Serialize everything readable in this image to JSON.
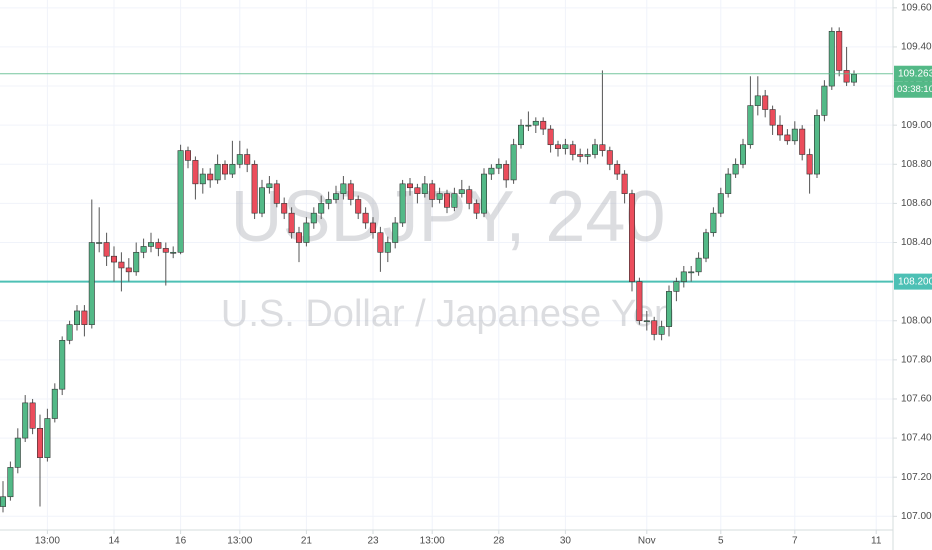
{
  "chart_data": {
    "type": "candlestick",
    "watermark_symbol": "USDJPY, 240",
    "watermark_description": "U.S. Dollar / Japanese Yen",
    "categories": [
      null,
      null,
      null,
      null,
      null,
      null,
      "13:00",
      null,
      null,
      null,
      null,
      null,
      null,
      null,
      null,
      "14",
      null,
      null,
      null,
      null,
      null,
      null,
      null,
      null,
      "16",
      null,
      null,
      null,
      null,
      null,
      null,
      null,
      "13:00",
      null,
      null,
      null,
      null,
      null,
      null,
      null,
      null,
      "21",
      null,
      null,
      null,
      null,
      null,
      null,
      null,
      null,
      "23",
      null,
      null,
      null,
      null,
      null,
      null,
      null,
      "13:00",
      null,
      null,
      null,
      null,
      null,
      null,
      null,
      null,
      "28",
      null,
      null,
      null,
      null,
      null,
      null,
      null,
      null,
      "30",
      null,
      null,
      null,
      null,
      null,
      null,
      null,
      null,
      null,
      null,
      "Nov",
      null,
      null,
      null,
      null,
      null,
      null,
      null,
      null,
      null,
      "5",
      null,
      null,
      null,
      null,
      null,
      null,
      null,
      null,
      null,
      "7",
      null,
      null,
      null,
      null,
      null,
      null,
      null,
      null,
      null,
      null,
      "11"
    ],
    "open": [
      107.05,
      107.1,
      107.25,
      107.4,
      107.58,
      107.45,
      107.3,
      107.5,
      107.65,
      107.9,
      107.98,
      108.05,
      107.98,
      108.4,
      108.4,
      108.33,
      108.3,
      108.27,
      108.25,
      108.35,
      108.38,
      108.4,
      108.37,
      108.35,
      108.35,
      108.87,
      108.82,
      108.7,
      108.75,
      108.72,
      108.8,
      108.75,
      108.8,
      108.85,
      108.8,
      108.55,
      108.68,
      108.7,
      108.6,
      108.55,
      108.45,
      108.4,
      108.5,
      108.55,
      108.6,
      108.62,
      108.65,
      108.7,
      108.62,
      108.55,
      108.5,
      108.45,
      108.35,
      108.4,
      108.5,
      108.7,
      108.68,
      108.65,
      108.7,
      108.62,
      108.65,
      108.58,
      108.65,
      108.67,
      108.6,
      108.55,
      108.75,
      108.78,
      108.8,
      108.72,
      108.9,
      109.0,
      109.0,
      109.02,
      108.98,
      108.9,
      108.88,
      108.9,
      108.85,
      108.84,
      108.85,
      108.9,
      108.87,
      108.8,
      108.75,
      108.65,
      108.2,
      108.0,
      108.0,
      107.93,
      107.97,
      108.15,
      108.2,
      108.25,
      108.25,
      108.32,
      108.45,
      108.55,
      108.65,
      108.75,
      108.8,
      108.9,
      109.1,
      109.15,
      109.08,
      109.0,
      108.95,
      108.92,
      108.98,
      108.85,
      108.75,
      109.05,
      109.2,
      109.48,
      109.28,
      109.22,
      null,
      null,
      null
    ],
    "high": [
      107.18,
      107.28,
      107.45,
      107.62,
      107.6,
      107.52,
      107.55,
      107.68,
      107.92,
      108.0,
      108.08,
      108.08,
      108.62,
      108.58,
      108.45,
      108.38,
      108.35,
      108.32,
      108.4,
      108.42,
      108.45,
      108.42,
      108.4,
      108.38,
      108.9,
      108.89,
      108.84,
      108.78,
      108.78,
      108.85,
      108.82,
      108.92,
      108.92,
      108.88,
      108.82,
      108.72,
      108.74,
      108.72,
      108.63,
      108.58,
      108.48,
      108.53,
      108.58,
      108.64,
      108.66,
      108.69,
      108.74,
      108.72,
      108.64,
      108.58,
      108.53,
      108.48,
      108.43,
      108.53,
      108.72,
      108.73,
      108.7,
      108.74,
      108.72,
      108.68,
      108.67,
      108.68,
      108.72,
      108.69,
      108.62,
      108.78,
      108.8,
      108.83,
      108.82,
      108.93,
      109.03,
      109.07,
      109.04,
      109.04,
      109.0,
      108.92,
      108.93,
      108.92,
      108.88,
      108.88,
      108.93,
      109.28,
      108.89,
      108.82,
      108.77,
      108.67,
      108.22,
      108.05,
      108.02,
      108.0,
      108.18,
      108.22,
      108.28,
      108.28,
      108.35,
      108.47,
      108.58,
      108.68,
      108.78,
      108.83,
      108.93,
      109.25,
      109.25,
      109.18,
      109.1,
      109.05,
      108.98,
      109.02,
      109.0,
      108.88,
      109.08,
      109.23,
      109.5,
      109.5,
      109.4,
      109.28,
      null,
      null,
      null
    ],
    "low": [
      107.02,
      107.08,
      107.22,
      107.38,
      107.42,
      107.05,
      107.28,
      107.48,
      107.62,
      107.88,
      107.95,
      107.92,
      107.96,
      108.35,
      108.28,
      108.2,
      108.15,
      108.2,
      108.23,
      108.32,
      108.35,
      108.33,
      108.18,
      108.32,
      108.34,
      108.78,
      108.62,
      108.65,
      108.68,
      108.7,
      108.72,
      108.73,
      108.78,
      108.76,
      108.52,
      108.53,
      108.65,
      108.58,
      108.52,
      108.42,
      108.3,
      108.38,
      108.47,
      108.52,
      108.57,
      108.6,
      108.62,
      108.59,
      108.52,
      108.47,
      108.42,
      108.25,
      108.3,
      108.37,
      108.48,
      108.64,
      108.6,
      108.63,
      108.58,
      108.6,
      108.55,
      108.56,
      108.63,
      108.57,
      108.52,
      108.53,
      108.72,
      108.75,
      108.68,
      108.7,
      108.88,
      108.97,
      108.96,
      108.95,
      108.86,
      108.84,
      108.85,
      108.82,
      108.81,
      108.8,
      108.83,
      108.84,
      108.77,
      108.72,
      108.6,
      108.15,
      107.98,
      107.95,
      107.9,
      107.9,
      107.92,
      108.1,
      108.17,
      108.2,
      108.23,
      108.3,
      108.43,
      108.53,
      108.63,
      108.73,
      108.78,
      108.88,
      109.05,
      109.04,
      108.95,
      108.92,
      108.9,
      108.9,
      108.82,
      108.65,
      108.73,
      109.02,
      109.18,
      109.25,
      109.2,
      109.2,
      null,
      null,
      null
    ],
    "close": [
      107.1,
      107.25,
      107.4,
      107.58,
      107.45,
      107.3,
      107.5,
      107.65,
      107.9,
      107.98,
      108.05,
      107.98,
      108.4,
      108.4,
      108.33,
      108.3,
      108.27,
      108.25,
      108.35,
      108.38,
      108.4,
      108.37,
      108.35,
      108.35,
      108.87,
      108.82,
      108.7,
      108.75,
      108.72,
      108.8,
      108.75,
      108.8,
      108.85,
      108.8,
      108.55,
      108.68,
      108.7,
      108.6,
      108.55,
      108.45,
      108.4,
      108.5,
      108.55,
      108.6,
      108.62,
      108.65,
      108.7,
      108.62,
      108.55,
      108.5,
      108.45,
      108.35,
      108.4,
      108.5,
      108.7,
      108.68,
      108.65,
      108.7,
      108.62,
      108.65,
      108.58,
      108.65,
      108.67,
      108.6,
      108.55,
      108.75,
      108.78,
      108.8,
      108.72,
      108.9,
      109.0,
      109.0,
      109.02,
      108.98,
      108.9,
      108.88,
      108.9,
      108.85,
      108.84,
      108.85,
      108.9,
      108.87,
      108.8,
      108.75,
      108.65,
      108.2,
      108.0,
      108.0,
      107.93,
      107.97,
      108.15,
      108.2,
      108.25,
      108.25,
      108.32,
      108.45,
      108.55,
      108.65,
      108.75,
      108.8,
      108.9,
      109.1,
      109.15,
      109.08,
      109.0,
      108.95,
      108.92,
      108.98,
      108.85,
      108.75,
      109.05,
      109.2,
      109.48,
      109.28,
      109.22,
      109.26,
      null,
      null,
      null
    ],
    "up_color": "#53b987",
    "down_color": "#eb4d5c",
    "ylim": [
      106.93,
      109.64
    ],
    "yticks": [
      {
        "value": 107.0,
        "label": "107.000"
      },
      {
        "value": 107.2,
        "label": "107.200"
      },
      {
        "value": 107.4,
        "label": "107.400"
      },
      {
        "value": 107.6,
        "label": "107.600"
      },
      {
        "value": 107.8,
        "label": "107.800"
      },
      {
        "value": 108.0,
        "label": "108.000"
      },
      {
        "value": 108.2,
        "label": "108.200"
      },
      {
        "value": 108.4,
        "label": "108.400"
      },
      {
        "value": 108.6,
        "label": "108.600"
      },
      {
        "value": 108.8,
        "label": "108.800"
      },
      {
        "value": 109.0,
        "label": "109.000"
      },
      {
        "value": 109.2,
        "label": "109.200"
      },
      {
        "value": 109.4,
        "label": "109.400"
      },
      {
        "value": 109.6,
        "label": "109.600"
      }
    ],
    "grid": true,
    "price_line": {
      "value": 109.263,
      "label": "109.263",
      "countdown": "03:38:10",
      "color": "#53b987"
    },
    "horizontal_line": {
      "value": 108.2,
      "label": "108.200",
      "color": "#4dc0b5"
    }
  }
}
